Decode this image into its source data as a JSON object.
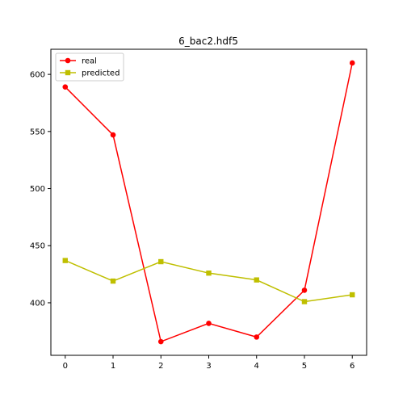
{
  "chart_data": {
    "type": "line",
    "title": "6_bac2.hdf5",
    "xlabel": "",
    "ylabel": "",
    "x": [
      0,
      1,
      2,
      3,
      4,
      5,
      6
    ],
    "xlim": [
      -0.3,
      6.3
    ],
    "ylim": [
      354,
      622
    ],
    "x_ticks": [
      0,
      1,
      2,
      3,
      4,
      5,
      6
    ],
    "y_ticks": [
      400,
      450,
      500,
      550,
      600
    ],
    "grid": false,
    "legend_position": "top-left",
    "series": [
      {
        "name": "real",
        "color": "#ff0000",
        "marker": "circle",
        "values": [
          589,
          547,
          366,
          382,
          370,
          411,
          610
        ]
      },
      {
        "name": "predicted",
        "color": "#bfbf00",
        "marker": "square",
        "values": [
          437,
          419,
          436,
          426,
          420,
          401,
          407
        ]
      }
    ]
  }
}
